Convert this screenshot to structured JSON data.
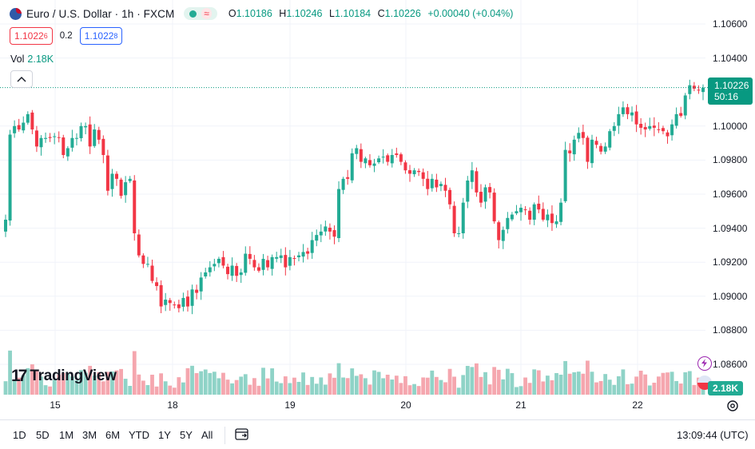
{
  "symbol": {
    "title": "Euro / U.S. Dollar · 1h · FXCM",
    "status_icon": "market-open-dot-icon",
    "status_wave": "≈"
  },
  "ohlc": {
    "open_label": "O",
    "open": "1.10186",
    "high_label": "H",
    "high": "1.10246",
    "low_label": "L",
    "low": "1.10184",
    "close_label": "C",
    "close": "1.10226",
    "change": "+0.00040 (+0.04%)"
  },
  "trade": {
    "sell_main": "1.1022",
    "sell_sup": "6",
    "spread": "0.2",
    "buy_main": "1.1022",
    "buy_sup": "8"
  },
  "volume": {
    "label": "Vol",
    "value": "2.18K",
    "tag": "2.18K"
  },
  "last_price": {
    "price": "1.10226",
    "countdown": "50:16"
  },
  "price_axis": [
    "1.10600",
    "1.10400",
    "1.10000",
    "1.09800",
    "1.09600",
    "1.09400",
    "1.09200",
    "1.09000",
    "1.08800",
    "1.08600"
  ],
  "time_axis": [
    "15",
    "18",
    "19",
    "20",
    "21",
    "22"
  ],
  "logo": {
    "mark": "17",
    "text": "TradingView"
  },
  "bottom_bar": {
    "ranges": [
      "1D",
      "5D",
      "1M",
      "3M",
      "6M",
      "YTD",
      "1Y",
      "5Y",
      "All"
    ],
    "clock": "13:09:44 (UTC)"
  },
  "colors": {
    "up": "#22ab94",
    "down": "#f23645",
    "volume_up": "#8fd3c7",
    "volume_down": "#f5a6ae",
    "grid": "#f0f3fa",
    "accent": "#089981"
  },
  "chart_data": {
    "type": "candlestick",
    "title": "Euro / U.S. Dollar · 1h · FXCM",
    "ylim": [
      1.0845,
      1.107
    ],
    "y_ticks": [
      1.106,
      1.104,
      1.1,
      1.098,
      1.096,
      1.094,
      1.092,
      1.09,
      1.088,
      1.086
    ],
    "x_ticks": [
      "15",
      "18",
      "19",
      "20",
      "21",
      "22"
    ],
    "last_close": 1.10226,
    "closes": [
      1.0945,
      1.0995,
      1.1,
      1.0998,
      1.1002,
      1.1007,
      1.0998,
      1.0988,
      1.0993,
      1.0993,
      1.0993,
      1.0994,
      1.0993,
      1.0983,
      1.0987,
      1.0993,
      1.0993,
      1.1,
      1.1,
      1.0988,
      1.0998,
      1.0992,
      1.0983,
      1.0962,
      1.0972,
      1.0969,
      1.0959,
      1.0967,
      1.0969,
      1.0937,
      1.0924,
      1.0919,
      1.0919,
      1.0909,
      1.0906,
      1.0894,
      1.0898,
      1.0896,
      1.0895,
      1.0893,
      1.0899,
      1.0894,
      1.0904,
      1.0902,
      1.0911,
      1.0914,
      1.0917,
      1.0919,
      1.0922,
      1.0918,
      1.0913,
      1.0918,
      1.0912,
      1.0914,
      1.0925,
      1.0922,
      1.0917,
      1.0915,
      1.0922,
      1.0917,
      1.0923,
      1.0923,
      1.0924,
      1.0917,
      1.0923,
      1.0922,
      1.0924,
      1.0926,
      1.0925,
      1.0933,
      1.0936,
      1.0938,
      1.0941,
      1.0938,
      1.0935,
      1.0963,
      1.0969,
      1.0969,
      1.0984,
      1.0987,
      1.0979,
      1.0981,
      1.0977,
      1.0978,
      1.0981,
      1.0982,
      1.0979,
      1.0983,
      1.0983,
      1.0979,
      1.0974,
      1.0972,
      1.0974,
      1.0973,
      1.0969,
      1.0963,
      1.0969,
      1.0964,
      1.0966,
      1.0962,
      1.0954,
      1.0937,
      1.0937,
      1.0955,
      1.0968,
      1.0974,
      1.0961,
      1.0955,
      1.0964,
      1.0961,
      1.0944,
      1.0933,
      1.0939,
      1.0946,
      1.0948,
      1.095,
      1.0952,
      1.0951,
      1.0945,
      1.0954,
      1.0951,
      1.0945,
      1.0948,
      1.0943,
      1.0944,
      1.0955,
      1.0986,
      1.0984,
      1.0992,
      1.0996,
      1.0993,
      1.0979,
      1.0992,
      1.0989,
      1.0985,
      1.0988,
      1.0997,
      1.1,
      1.1007,
      1.1011,
      1.1007,
      1.1008,
      1.1001,
      1.0999,
      1.0998,
      1.1,
      1.0999,
      1.0998,
      1.0997,
      1.0994,
      1.1001,
      1.1007,
      1.1006,
      1.1018,
      1.1024,
      1.1022,
      1.1021,
      1.10226
    ]
  }
}
